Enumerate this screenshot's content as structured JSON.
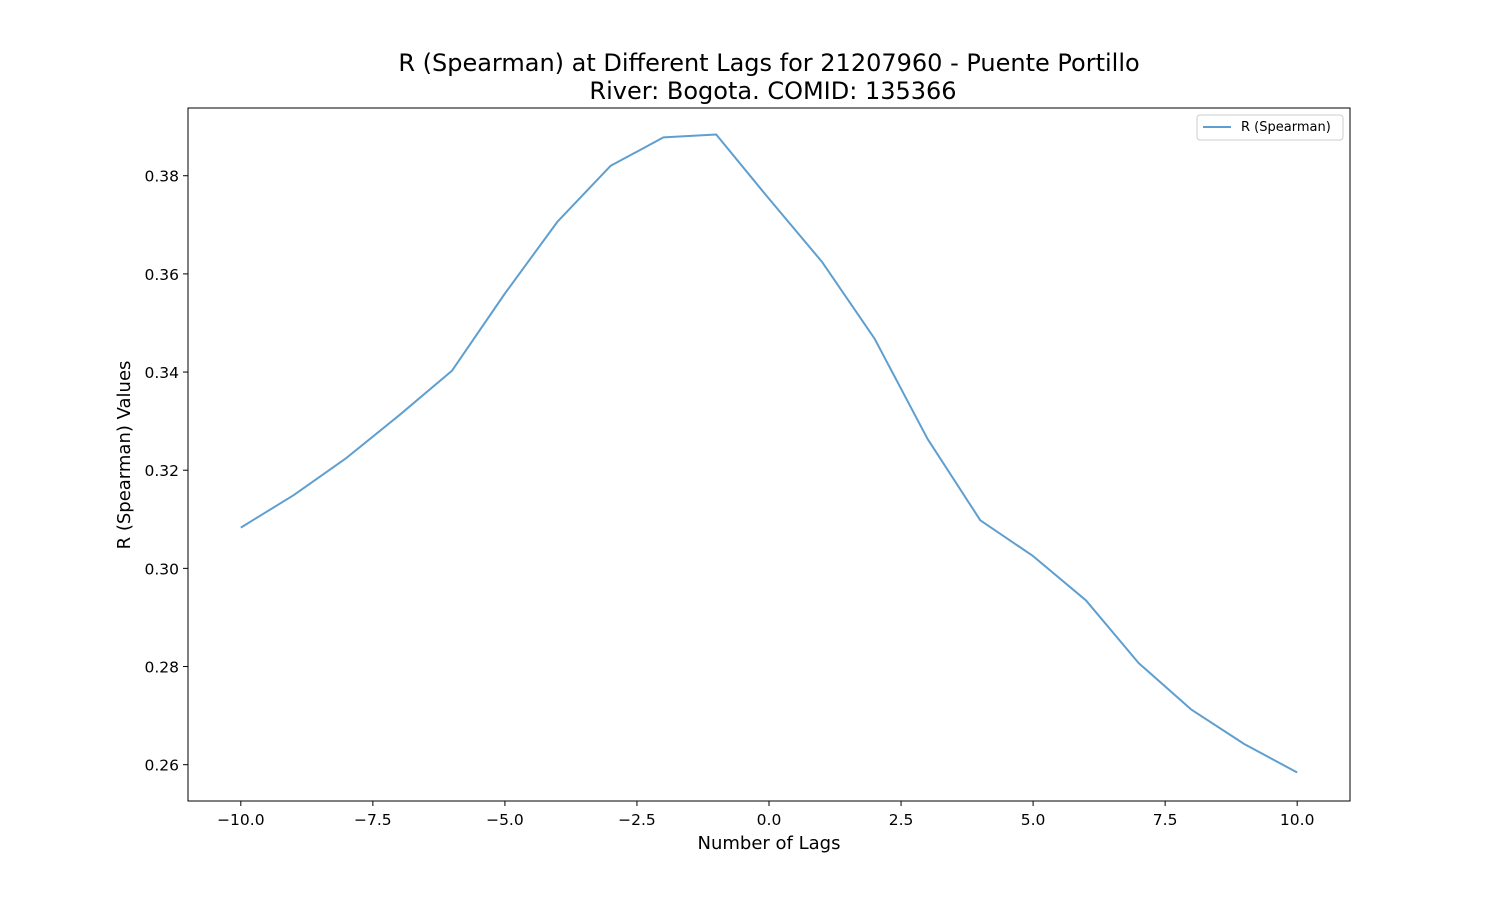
{
  "chart_data": {
    "type": "line",
    "title_line1": "R (Spearman) at Different Lags for 21207960 - Puente Portillo",
    "title_line2": "River: Bogota. COMID: 135366",
    "xlabel": "Number of Lags",
    "ylabel": "R (Spearman) Values",
    "xlim": [
      -11,
      11
    ],
    "ylim": [
      0.2526,
      0.3938
    ],
    "xticks": [
      -10.0,
      -7.5,
      -5.0,
      -2.5,
      0.0,
      2.5,
      5.0,
      7.5,
      10.0
    ],
    "xtick_labels": [
      "−10.0",
      "−7.5",
      "−5.0",
      "−2.5",
      "0.0",
      "2.5",
      "5.0",
      "7.5",
      "10.0"
    ],
    "yticks": [
      0.26,
      0.28,
      0.3,
      0.32,
      0.34,
      0.36,
      0.38
    ],
    "ytick_labels": [
      "0.26",
      "0.28",
      "0.30",
      "0.32",
      "0.34",
      "0.36",
      "0.38"
    ],
    "grid": false,
    "legend_position": "top-right",
    "series": [
      {
        "name": "R (Spearman)",
        "color": "#5f9fd0",
        "x": [
          -10,
          -9,
          -8,
          -7,
          -6,
          -5,
          -4,
          -3,
          -2,
          -1,
          0,
          1,
          2,
          3,
          4,
          5,
          6,
          7,
          8,
          9,
          10
        ],
        "y": [
          0.3083,
          0.3149,
          0.3225,
          0.3312,
          0.3403,
          0.356,
          0.3707,
          0.382,
          0.3878,
          0.3884,
          0.3753,
          0.3625,
          0.3468,
          0.3264,
          0.3098,
          0.3025,
          0.2935,
          0.2807,
          0.2712,
          0.2642,
          0.2584
        ]
      }
    ]
  }
}
